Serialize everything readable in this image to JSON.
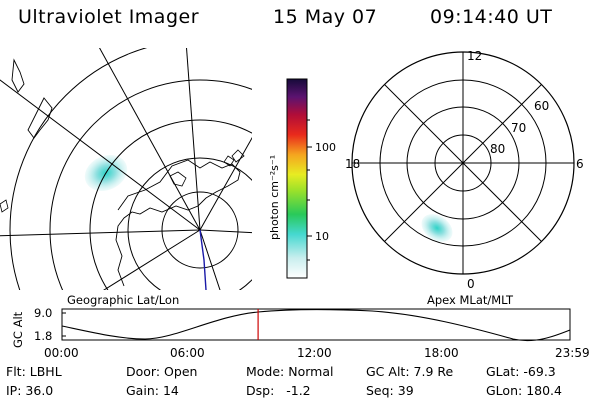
{
  "header": {
    "title": "Ultraviolet Imager",
    "date": "15 May 07",
    "time": "09:14:40 UT"
  },
  "colorbar": {
    "units": "photon cm⁻²s⁻¹",
    "ticks": [
      "100",
      "10"
    ]
  },
  "left_map": {
    "label": "Geographic Lat/Lon"
  },
  "right_map": {
    "label": "Apex MLat/MLT",
    "mlt_labels": {
      "top": "12",
      "left": "18",
      "right": "6",
      "bottom": "0"
    },
    "mlat_labels": [
      "60",
      "70",
      "80"
    ]
  },
  "altitude_plot": {
    "ylabel": "GC Alt",
    "yticks": [
      "9.0",
      "1.8"
    ],
    "xticks": [
      "00:00",
      "06:00",
      "12:00",
      "18:00",
      "23:59"
    ],
    "current_time_fraction": 0.386
  },
  "info": {
    "row1": [
      {
        "key": "Flt:",
        "val": "LBHL"
      },
      {
        "key": "Door:",
        "val": "Open"
      },
      {
        "key": "Mode:",
        "val": "Normal"
      },
      {
        "key": "GC Alt:",
        "val": "7.9 Re"
      },
      {
        "key": "GLat:",
        "val": "-69.3"
      }
    ],
    "row2": [
      {
        "key": "IP:",
        "val": "36.0"
      },
      {
        "key": "Gain:",
        "val": "14"
      },
      {
        "key": "Dsp:",
        "val": "  -1.2"
      },
      {
        "key": "Seq:",
        "val": "39"
      },
      {
        "key": "GLon:",
        "val": "180.4"
      }
    ]
  },
  "colors": {
    "line": "#000000",
    "marker": "#cc0000",
    "aurora": "#9fe3e3",
    "aurora_core": "#2fd3c8",
    "track": "#1a1aa8"
  }
}
